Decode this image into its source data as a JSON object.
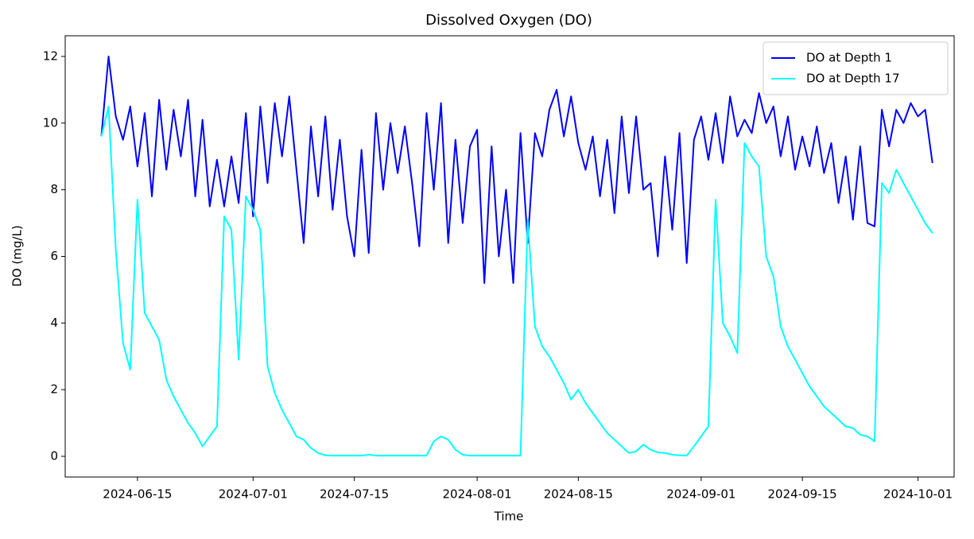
{
  "chart_data": {
    "type": "line",
    "title": "Dissolved Oxygen (DO)",
    "x_label": "Time",
    "y_label": "DO (mg/L)",
    "x_start": "2024-06-10",
    "x": [
      "2024-06-10",
      "2024-06-11",
      "2024-06-12",
      "2024-06-13",
      "2024-06-14",
      "2024-06-15",
      "2024-06-16",
      "2024-06-17",
      "2024-06-18",
      "2024-06-19",
      "2024-06-20",
      "2024-06-21",
      "2024-06-22",
      "2024-06-23",
      "2024-06-24",
      "2024-06-25",
      "2024-06-26",
      "2024-06-27",
      "2024-06-28",
      "2024-06-29",
      "2024-06-30",
      "2024-07-01",
      "2024-07-02",
      "2024-07-03",
      "2024-07-04",
      "2024-07-05",
      "2024-07-06",
      "2024-07-07",
      "2024-07-08",
      "2024-07-09",
      "2024-07-10",
      "2024-07-11",
      "2024-07-12",
      "2024-07-13",
      "2024-07-14",
      "2024-07-15",
      "2024-07-16",
      "2024-07-17",
      "2024-07-18",
      "2024-07-19",
      "2024-07-20",
      "2024-07-21",
      "2024-07-22",
      "2024-07-23",
      "2024-07-24",
      "2024-07-25",
      "2024-07-26",
      "2024-07-27",
      "2024-07-28",
      "2024-07-29",
      "2024-07-30",
      "2024-07-31",
      "2024-08-01",
      "2024-08-02",
      "2024-08-03",
      "2024-08-04",
      "2024-08-05",
      "2024-08-06",
      "2024-08-07",
      "2024-08-08",
      "2024-08-09",
      "2024-08-10",
      "2024-08-11",
      "2024-08-12",
      "2024-08-13",
      "2024-08-14",
      "2024-08-15",
      "2024-08-16",
      "2024-08-17",
      "2024-08-18",
      "2024-08-19",
      "2024-08-20",
      "2024-08-21",
      "2024-08-22",
      "2024-08-23",
      "2024-08-24",
      "2024-08-25",
      "2024-08-26",
      "2024-08-27",
      "2024-08-28",
      "2024-08-29",
      "2024-08-30",
      "2024-08-31",
      "2024-09-01",
      "2024-09-02",
      "2024-09-03",
      "2024-09-04",
      "2024-09-05",
      "2024-09-06",
      "2024-09-07",
      "2024-09-08",
      "2024-09-09",
      "2024-09-10",
      "2024-09-11",
      "2024-09-12",
      "2024-09-13",
      "2024-09-14",
      "2024-09-15",
      "2024-09-16",
      "2024-09-17",
      "2024-09-18",
      "2024-09-19",
      "2024-09-20",
      "2024-09-21",
      "2024-09-22",
      "2024-09-23",
      "2024-09-24",
      "2024-09-25",
      "2024-09-26",
      "2024-09-27",
      "2024-09-28",
      "2024-09-29",
      "2024-09-30",
      "2024-10-01",
      "2024-10-02",
      "2024-10-03"
    ],
    "series": [
      {
        "name": "DO at Depth 1",
        "color": "#0000ff",
        "values": [
          9.6,
          12.0,
          10.2,
          9.5,
          10.5,
          8.7,
          10.3,
          7.8,
          10.7,
          8.6,
          10.4,
          9.0,
          10.7,
          7.8,
          10.1,
          7.5,
          8.9,
          7.5,
          9.0,
          7.6,
          10.3,
          7.2,
          10.5,
          8.2,
          10.6,
          9.0,
          10.8,
          8.6,
          6.4,
          9.9,
          7.8,
          10.2,
          7.4,
          9.5,
          7.2,
          6.0,
          9.2,
          6.1,
          10.3,
          8.0,
          10.0,
          8.5,
          9.9,
          8.2,
          6.3,
          10.3,
          8.0,
          10.6,
          6.4,
          9.5,
          7.0,
          9.3,
          9.8,
          5.2,
          9.3,
          6.0,
          8.0,
          5.2,
          9.7,
          6.4,
          9.7,
          9.0,
          10.4,
          11.0,
          9.6,
          10.8,
          9.4,
          8.6,
          9.6,
          7.8,
          9.5,
          7.3,
          10.2,
          7.9,
          10.2,
          8.0,
          8.2,
          6.0,
          9.0,
          6.8,
          9.7,
          5.8,
          9.5,
          10.2,
          8.9,
          10.3,
          8.8,
          10.8,
          9.6,
          10.1,
          9.7,
          10.9,
          10.0,
          10.5,
          9.0,
          10.2,
          8.6,
          9.6,
          8.7,
          9.9,
          8.5,
          9.4,
          7.6,
          9.0,
          7.1,
          9.3,
          7.0,
          6.9,
          10.4,
          9.3,
          10.4,
          10.0,
          10.6,
          10.2,
          10.4,
          8.8
        ]
      },
      {
        "name": "DO at Depth 17",
        "color": "#00ffff",
        "values": [
          9.6,
          10.5,
          6.2,
          3.4,
          2.6,
          7.7,
          4.3,
          3.9,
          3.5,
          2.3,
          1.8,
          1.4,
          1.0,
          0.7,
          0.3,
          0.6,
          0.9,
          7.2,
          6.8,
          2.9,
          7.8,
          7.4,
          6.8,
          2.7,
          1.9,
          1.4,
          1.0,
          0.6,
          0.5,
          0.25,
          0.1,
          0.03,
          0.02,
          0.02,
          0.02,
          0.02,
          0.02,
          0.05,
          0.02,
          0.02,
          0.02,
          0.02,
          0.02,
          0.02,
          0.02,
          0.02,
          0.45,
          0.6,
          0.5,
          0.2,
          0.05,
          0.02,
          0.02,
          0.02,
          0.02,
          0.02,
          0.02,
          0.02,
          0.02,
          7.1,
          3.9,
          3.3,
          3.0,
          2.6,
          2.2,
          1.7,
          2.0,
          1.6,
          1.3,
          1.0,
          0.7,
          0.5,
          0.3,
          0.1,
          0.15,
          0.35,
          0.2,
          0.12,
          0.1,
          0.05,
          0.03,
          0.02,
          0.3,
          0.6,
          0.9,
          7.7,
          4.0,
          3.6,
          3.1,
          9.4,
          9.0,
          8.7,
          6.0,
          5.4,
          3.9,
          3.3,
          2.9,
          2.5,
          2.1,
          1.8,
          1.5,
          1.3,
          1.1,
          0.9,
          0.85,
          0.65,
          0.6,
          0.45,
          8.2,
          7.9,
          8.6,
          8.2,
          7.8,
          7.4,
          7.0,
          6.7
        ]
      }
    ],
    "xlim": [
      "2024-06-05",
      "2024-10-06"
    ],
    "xticks": [
      "2024-06-15",
      "2024-07-01",
      "2024-07-15",
      "2024-08-01",
      "2024-08-15",
      "2024-09-01",
      "2024-09-15",
      "2024-10-01"
    ],
    "ylim": [
      -0.62,
      12.62
    ],
    "yticks": [
      0,
      2,
      4,
      6,
      8,
      10,
      12
    ],
    "legend": "upper right",
    "grid": false
  }
}
